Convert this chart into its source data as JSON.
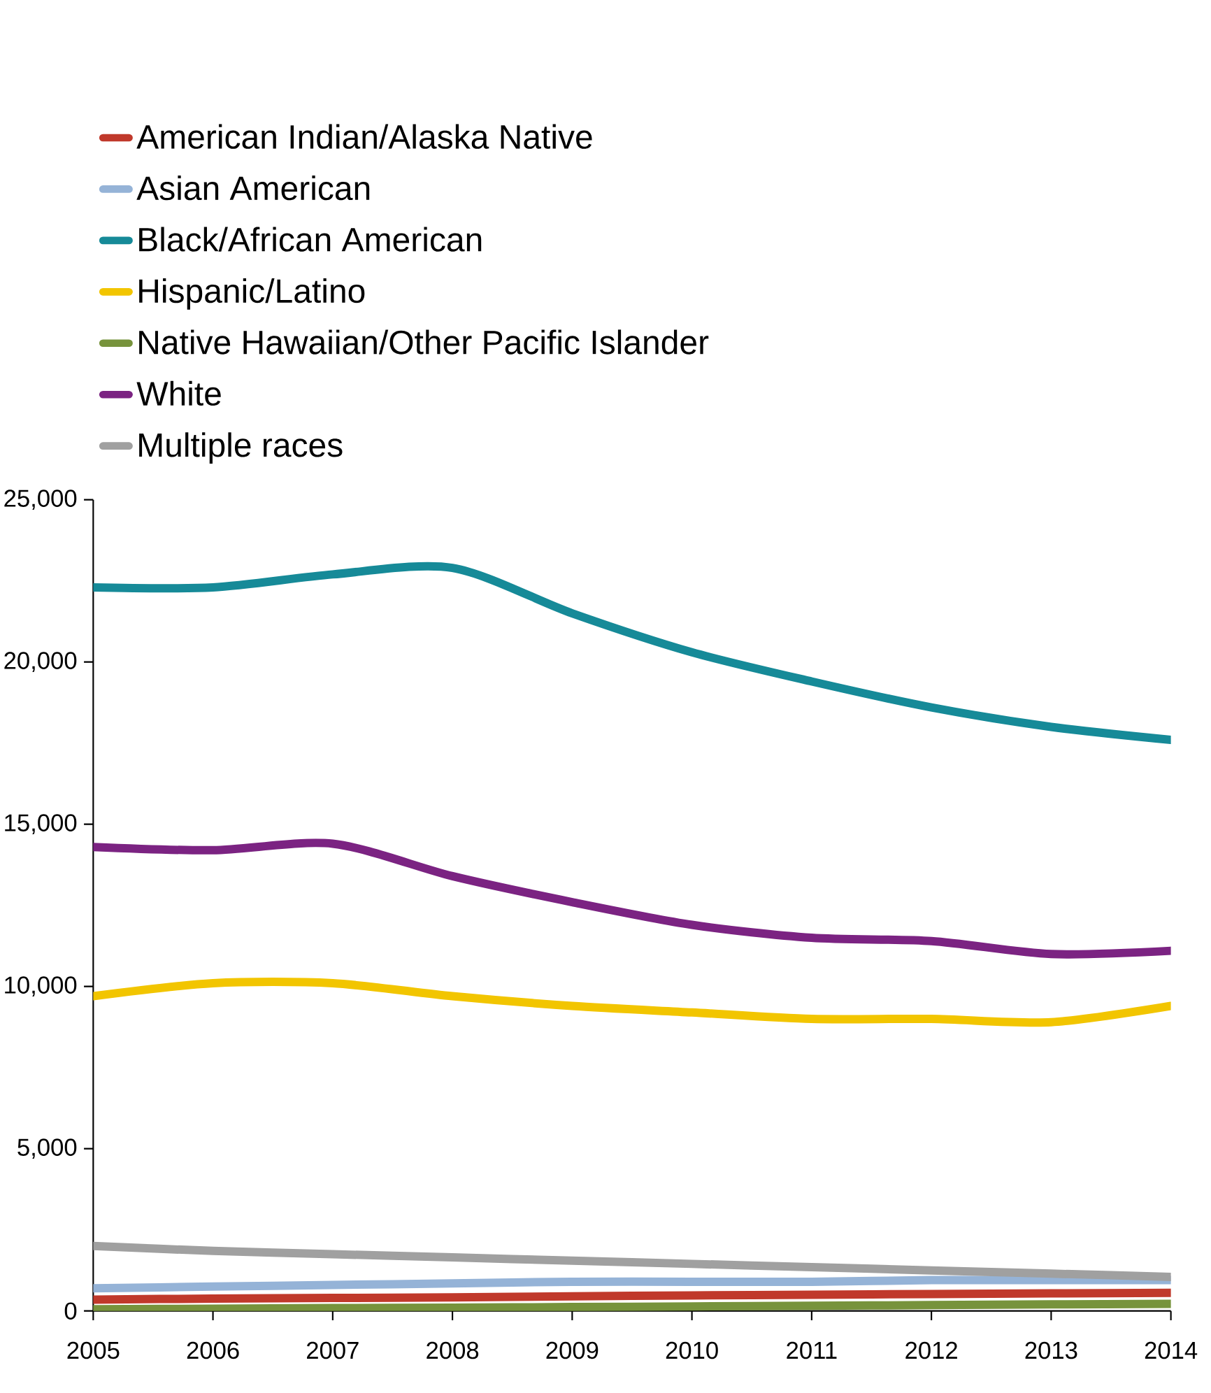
{
  "chart_data": {
    "type": "line",
    "x": [
      2005,
      2006,
      2007,
      2008,
      2009,
      2010,
      2011,
      2012,
      2013,
      2014
    ],
    "xlim": [
      2005,
      2014
    ],
    "xticks": [
      2005,
      2006,
      2007,
      2008,
      2009,
      2010,
      2011,
      2012,
      2013,
      2014
    ],
    "ylim": [
      0,
      25000
    ],
    "yticks": [
      {
        "value": 0,
        "label": "0"
      },
      {
        "value": 5000,
        "label": "5,000"
      },
      {
        "value": 10000,
        "label": "10,000"
      },
      {
        "value": 15000,
        "label": "15,000"
      },
      {
        "value": 20000,
        "label": "20,000"
      },
      {
        "value": 25000,
        "label": "25,000"
      }
    ],
    "grid": false,
    "legend": "top",
    "marker": "none",
    "line_style": "solid",
    "series": [
      {
        "name": "American Indian/Alaska Native",
        "color": "#c0392b",
        "values": [
          350,
          380,
          400,
          420,
          450,
          480,
          500,
          520,
          540,
          560
        ]
      },
      {
        "name": "Asian American",
        "color": "#95b3d7",
        "values": [
          700,
          750,
          800,
          850,
          900,
          900,
          900,
          950,
          950,
          950
        ]
      },
      {
        "name": "Black/African American",
        "color": "#168a98",
        "values": [
          22300,
          22300,
          22700,
          22900,
          21500,
          20300,
          19400,
          18600,
          18000,
          17600
        ]
      },
      {
        "name": "Hispanic/Latino",
        "color": "#f2c500",
        "values": [
          9700,
          10100,
          10100,
          9700,
          9400,
          9200,
          9000,
          9000,
          8900,
          9400
        ]
      },
      {
        "name": "Native Hawaiian/Other Pacific Islander",
        "color": "#77933c",
        "values": [
          50,
          70,
          90,
          100,
          120,
          140,
          160,
          180,
          200,
          220
        ]
      },
      {
        "name": "White",
        "color": "#7b2382",
        "values": [
          14300,
          14200,
          14400,
          13400,
          12600,
          11900,
          11500,
          11400,
          11000,
          11100
        ]
      },
      {
        "name": "Multiple races",
        "color": "#a0a0a0",
        "values": [
          2000,
          1850,
          1750,
          1650,
          1550,
          1450,
          1350,
          1250,
          1150,
          1050
        ]
      }
    ]
  }
}
